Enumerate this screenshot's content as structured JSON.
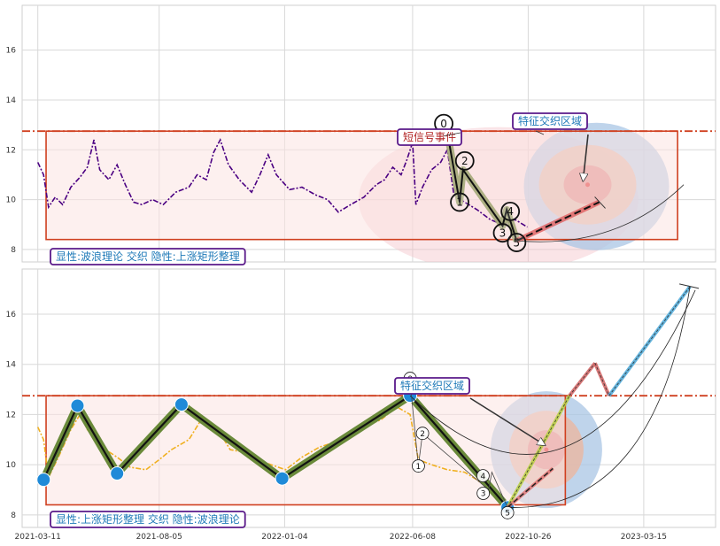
{
  "chart_data": [
    {
      "type": "line",
      "panel": "top",
      "xlim": [
        "2021-02-20",
        "2023-06-10"
      ],
      "ylim": [
        7.5,
        17.8
      ],
      "yticks": [
        8,
        10,
        12,
        14,
        16
      ],
      "grid": true,
      "colors": {
        "price": "#4b0082",
        "wave": "#000000",
        "wave_fill": "#a4a878",
        "band": "#d04020",
        "rect_fill": "#fbe4e2",
        "label_border": "#5a1a8a"
      },
      "reference_line": 12.75,
      "rectangle": {
        "x0": "2021-03-21",
        "x1": "2023-04-25",
        "y0": 8.4,
        "y1": 12.75
      },
      "price": [
        [
          "2021-03-11",
          11.5
        ],
        [
          "2021-03-18",
          11.0
        ],
        [
          "2021-03-24",
          9.7
        ],
        [
          "2021-04-01",
          10.1
        ],
        [
          "2021-04-10",
          9.8
        ],
        [
          "2021-04-20",
          10.5
        ],
        [
          "2021-05-01",
          10.9
        ],
        [
          "2021-05-10",
          11.3
        ],
        [
          "2021-05-18",
          12.4
        ],
        [
          "2021-05-25",
          11.2
        ],
        [
          "2021-06-05",
          10.8
        ],
        [
          "2021-06-15",
          11.4
        ],
        [
          "2021-06-25",
          10.6
        ],
        [
          "2021-07-05",
          9.9
        ],
        [
          "2021-07-15",
          9.8
        ],
        [
          "2021-07-28",
          10.0
        ],
        [
          "2021-08-10",
          9.8
        ],
        [
          "2021-08-25",
          10.3
        ],
        [
          "2021-09-10",
          10.5
        ],
        [
          "2021-09-20",
          11.0
        ],
        [
          "2021-10-01",
          10.8
        ],
        [
          "2021-10-10",
          11.9
        ],
        [
          "2021-10-18",
          12.4
        ],
        [
          "2021-10-28",
          11.4
        ],
        [
          "2021-11-10",
          10.8
        ],
        [
          "2021-11-25",
          10.3
        ],
        [
          "2021-12-05",
          11.0
        ],
        [
          "2021-12-15",
          11.8
        ],
        [
          "2021-12-25",
          11.0
        ],
        [
          "2022-01-10",
          10.4
        ],
        [
          "2022-01-25",
          10.5
        ],
        [
          "2022-02-10",
          10.2
        ],
        [
          "2022-02-25",
          10.0
        ],
        [
          "2022-03-10",
          9.5
        ],
        [
          "2022-03-25",
          9.8
        ],
        [
          "2022-04-10",
          10.1
        ],
        [
          "2022-04-25",
          10.6
        ],
        [
          "2022-05-05",
          10.8
        ],
        [
          "2022-05-15",
          11.3
        ],
        [
          "2022-05-25",
          11.0
        ],
        [
          "2022-06-01",
          11.6
        ],
        [
          "2022-06-08",
          12.3
        ],
        [
          "2022-06-12",
          9.8
        ],
        [
          "2022-06-20",
          10.5
        ],
        [
          "2022-07-01",
          11.2
        ],
        [
          "2022-07-12",
          11.5
        ],
        [
          "2022-07-20",
          12.0
        ],
        [
          "2022-07-28",
          10.2
        ],
        [
          "2022-08-10",
          9.9
        ],
        [
          "2022-08-25",
          9.6
        ],
        [
          "2022-09-10",
          9.2
        ],
        [
          "2022-09-25",
          9.0
        ],
        [
          "2022-10-10",
          9.2
        ],
        [
          "2022-10-25",
          8.9
        ]
      ],
      "wave_points": [
        {
          "label": "0",
          "date": "2022-07-20",
          "value": 12.7
        },
        {
          "label": "1",
          "date": "2022-08-04",
          "value": 9.9
        },
        {
          "label": "2",
          "date": "2022-08-08",
          "value": 11.2
        },
        {
          "label": "3",
          "date": "2022-09-25",
          "value": 8.95
        },
        {
          "label": "4",
          "date": "2022-09-30",
          "value": 9.6
        },
        {
          "label": "5",
          "date": "2022-10-12",
          "value": 8.35
        }
      ],
      "projection": {
        "from": {
          "date": "2022-10-12",
          "value": 8.35
        },
        "to": {
          "date": "2023-01-20",
          "value": 9.9
        }
      },
      "zone_center": {
        "date": "2023-01-06",
        "value": 10.6
      },
      "annotations": {
        "event": "短信号事件",
        "zone": "特征交织区域",
        "bottom": "显性:波浪理论 交织 隐性:上涨矩形整理"
      }
    },
    {
      "type": "line",
      "panel": "bottom",
      "xlim": [
        "2021-02-20",
        "2023-06-10"
      ],
      "ylim": [
        7.5,
        17.8
      ],
      "yticks": [
        8,
        10,
        12,
        14,
        16
      ],
      "xticks": [
        "2021-03-11",
        "2021-08-05",
        "2022-01-04",
        "2022-06-08",
        "2022-10-26",
        "2023-03-15"
      ],
      "grid": true,
      "colors": {
        "price": "#f0b020",
        "zigzag": "#6a8a3a",
        "node": "#1f8ad8",
        "band": "#d04020",
        "up": "#d06060",
        "target": "#4aa8d8",
        "label_border": "#5a1a8a"
      },
      "reference_line": 12.75,
      "rectangle": {
        "x0": "2021-03-21",
        "x1": "2022-12-10",
        "y0": 8.4,
        "y1": 12.75
      },
      "price": [
        [
          "2021-03-11",
          11.5
        ],
        [
          "2021-03-18",
          11.0
        ],
        [
          "2021-03-24",
          9.5
        ],
        [
          "2021-04-05",
          10.3
        ],
        [
          "2021-04-20",
          11.4
        ],
        [
          "2021-05-01",
          12.0
        ],
        [
          "2021-05-10",
          11.4
        ],
        [
          "2021-05-20",
          11.0
        ],
        [
          "2021-06-01",
          10.6
        ],
        [
          "2021-06-15",
          10.3
        ],
        [
          "2021-07-01",
          9.9
        ],
        [
          "2021-07-20",
          9.8
        ],
        [
          "2021-08-05",
          10.2
        ],
        [
          "2021-08-20",
          10.6
        ],
        [
          "2021-09-10",
          11.0
        ],
        [
          "2021-09-25",
          11.8
        ],
        [
          "2021-10-15",
          11.4
        ],
        [
          "2021-10-30",
          10.6
        ],
        [
          "2021-11-15",
          10.5
        ],
        [
          "2021-12-10",
          10.1
        ],
        [
          "2022-01-05",
          9.8
        ],
        [
          "2022-01-25",
          10.3
        ],
        [
          "2022-02-15",
          10.7
        ],
        [
          "2022-03-15",
          11.0
        ],
        [
          "2022-04-10",
          11.5
        ],
        [
          "2022-05-01",
          11.8
        ],
        [
          "2022-05-20",
          12.3
        ],
        [
          "2022-06-05",
          12.0
        ],
        [
          "2022-06-15",
          10.2
        ],
        [
          "2022-07-01",
          10.0
        ],
        [
          "2022-07-20",
          9.8
        ],
        [
          "2022-08-10",
          9.7
        ],
        [
          "2022-08-25",
          9.4
        ],
        [
          "2022-09-10",
          9.0
        ],
        [
          "2022-09-25",
          8.6
        ],
        [
          "2022-10-05",
          8.3
        ]
      ],
      "zigzag_points": [
        [
          "2021-03-18",
          9.4
        ],
        [
          "2021-04-28",
          12.35
        ],
        [
          "2021-06-15",
          9.65
        ],
        [
          "2021-09-01",
          12.4
        ],
        [
          "2022-01-01",
          9.45
        ],
        [
          "2022-06-05",
          12.75
        ],
        [
          "2022-10-01",
          8.3
        ]
      ],
      "wave_points": [
        {
          "label": "0",
          "date": "2022-06-05",
          "value": 13.3
        },
        {
          "label": "1",
          "date": "2022-06-15",
          "value": 9.95
        },
        {
          "label": "2",
          "date": "2022-06-20",
          "value": 11.25
        },
        {
          "label": "3",
          "date": "2022-09-08",
          "value": 9.0
        },
        {
          "label": "4",
          "date": "2022-09-12",
          "value": 9.7
        },
        {
          "label": "5",
          "date": "2022-10-01",
          "value": 8.3
        }
      ],
      "breakout_path": [
        [
          "2022-10-01",
          8.3
        ],
        [
          "2022-12-15",
          12.75
        ],
        [
          "2023-01-15",
          14.05
        ],
        [
          "2023-02-01",
          12.75
        ],
        [
          "2023-05-10",
          17.1
        ]
      ],
      "projection": {
        "from": {
          "date": "2022-10-01",
          "value": 8.3
        },
        "to": {
          "date": "2022-11-25",
          "value": 9.85
        }
      },
      "zone_center": {
        "date": "2022-11-17",
        "value": 10.6
      },
      "annotations": {
        "zone": "特征交织区域",
        "bottom": "显性:上涨矩形整理 交织 隐性:波浪理论"
      }
    }
  ]
}
